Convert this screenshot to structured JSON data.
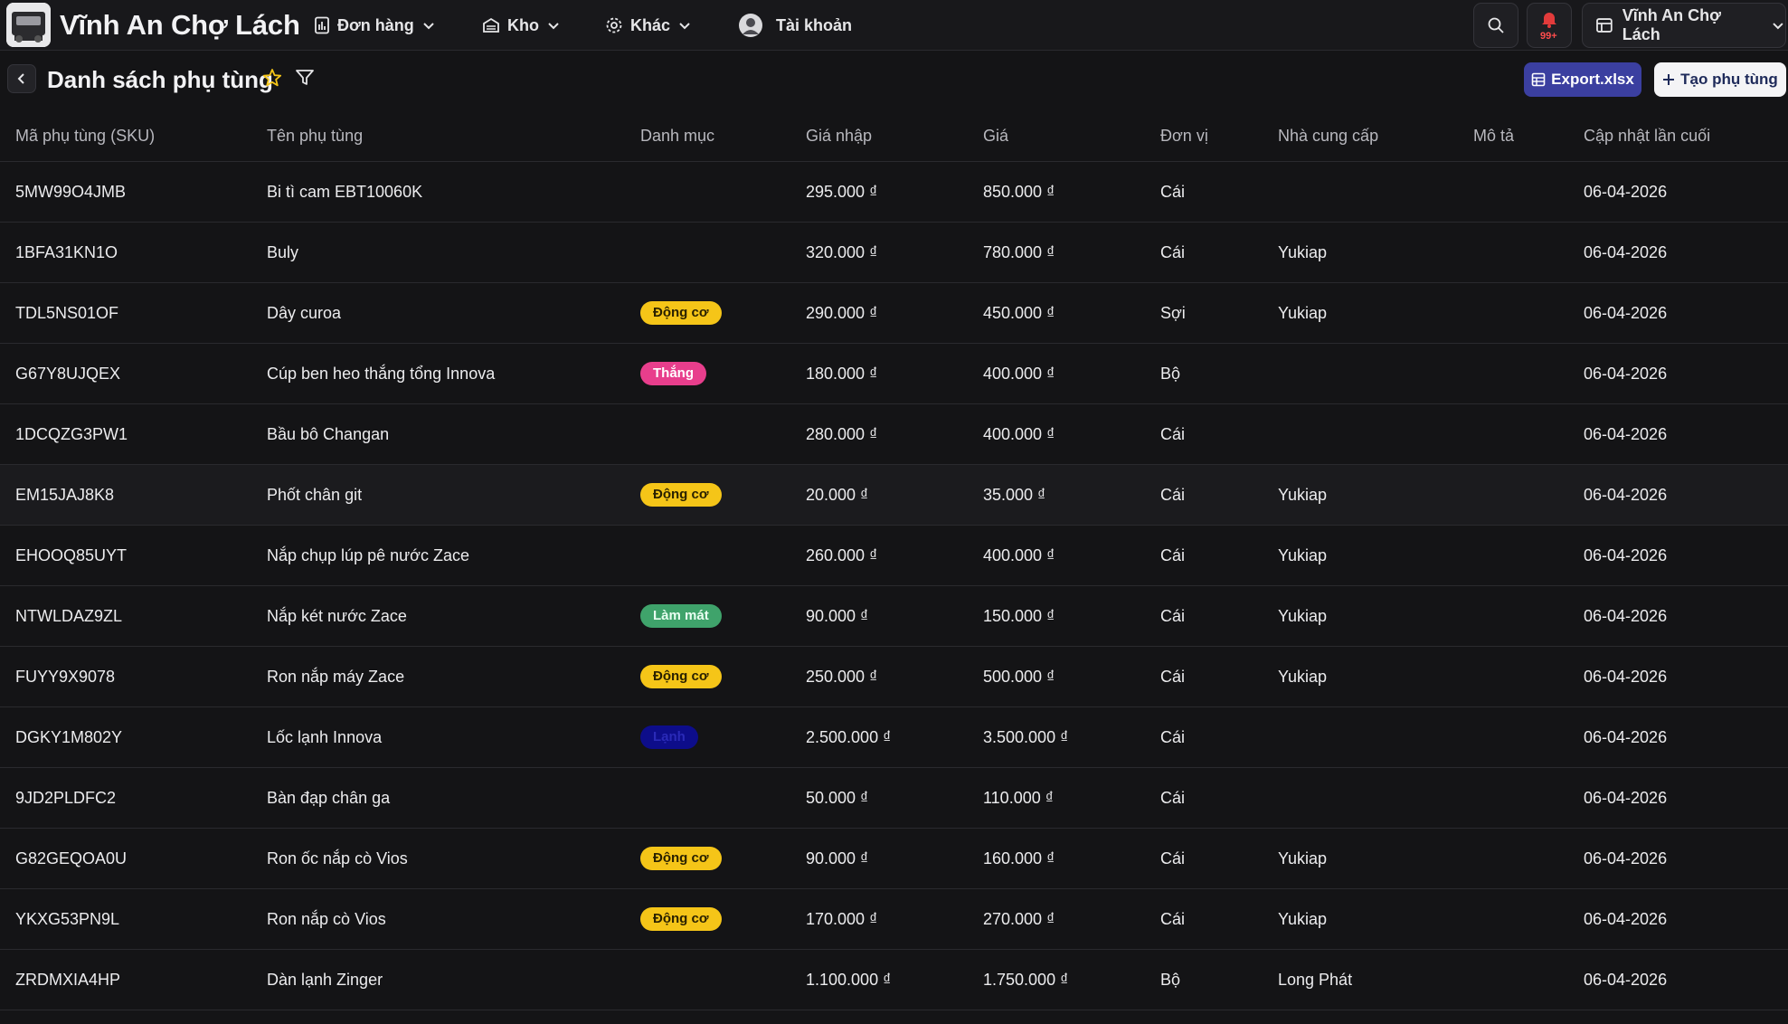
{
  "header": {
    "brand": "Vĩnh An Chợ Lách",
    "nav": [
      {
        "label": "Đơn hàng"
      },
      {
        "label": "Kho"
      },
      {
        "label": "Khác"
      },
      {
        "label": "Tài khoản"
      }
    ],
    "notification_badge": "99+",
    "store_selector": "Vĩnh An Chợ Lách",
    "icons": {
      "orders": "receipt-icon",
      "stock": "warehouse-icon",
      "other": "gear-icon",
      "account": "avatar",
      "search": "search-icon",
      "notifications": "bell-icon",
      "store": "store-icon"
    }
  },
  "page": {
    "title": "Danh sách phụ tùng",
    "export_label": "Export.xlsx",
    "create_label": "Tạo phụ tùng"
  },
  "table": {
    "columns": [
      "Mã phụ tùng (SKU)",
      "Tên phụ tùng",
      "Danh mục",
      "Giá nhập",
      "Giá",
      "Đơn vị",
      "Nhà cung cấp",
      "Mô tả",
      "Cập nhật lần cuối"
    ],
    "rows": [
      {
        "sku": "5MW99O4JMB",
        "name": "Bi tì cam EBT10060K",
        "category": "",
        "cost": "295.000 ₫",
        "price": "850.000 ₫",
        "unit": "Cái",
        "supplier": "",
        "desc": "",
        "updated": "06-04-2026"
      },
      {
        "sku": "1BFA31KN1O",
        "name": "Buly",
        "category": "",
        "cost": "320.000 ₫",
        "price": "780.000 ₫",
        "unit": "Cái",
        "supplier": "Yukiap",
        "desc": "",
        "updated": "06-04-2026"
      },
      {
        "sku": "TDL5NS01OF",
        "name": "Dây curoa",
        "category": "Động cơ",
        "cost": "290.000 ₫",
        "price": "450.000 ₫",
        "unit": "Sợi",
        "supplier": "Yukiap",
        "desc": "",
        "updated": "06-04-2026"
      },
      {
        "sku": "G67Y8UJQEX",
        "name": "Cúp ben heo thắng tổng Innova",
        "category": "Thắng",
        "cost": "180.000 ₫",
        "price": "400.000 ₫",
        "unit": "Bộ",
        "supplier": "",
        "desc": "",
        "updated": "06-04-2026"
      },
      {
        "sku": "1DCQZG3PW1",
        "name": "Bầu bô Changan",
        "category": "",
        "cost": "280.000 ₫",
        "price": "400.000 ₫",
        "unit": "Cái",
        "supplier": "",
        "desc": "",
        "updated": "06-04-2026"
      },
      {
        "sku": "EM15JAJ8K8",
        "name": "Phốt chân git",
        "category": "Động cơ",
        "cost": "20.000 ₫",
        "price": "35.000 ₫",
        "unit": "Cái",
        "supplier": "Yukiap",
        "desc": "",
        "updated": "06-04-2026"
      },
      {
        "sku": "EHOOQ85UYT",
        "name": "Nắp chụp lúp pê nước Zace",
        "category": "",
        "cost": "260.000 ₫",
        "price": "400.000 ₫",
        "unit": "Cái",
        "supplier": "Yukiap",
        "desc": "",
        "updated": "06-04-2026"
      },
      {
        "sku": "NTWLDAZ9ZL",
        "name": "Nắp két nước Zace",
        "category": "Làm mát",
        "cost": "90.000 ₫",
        "price": "150.000 ₫",
        "unit": "Cái",
        "supplier": "Yukiap",
        "desc": "",
        "updated": "06-04-2026"
      },
      {
        "sku": "FUYY9X9078",
        "name": "Ron nắp máy Zace",
        "category": "Động cơ",
        "cost": "250.000 ₫",
        "price": "500.000 ₫",
        "unit": "Cái",
        "supplier": "Yukiap",
        "desc": "",
        "updated": "06-04-2026"
      },
      {
        "sku": "DGKY1M802Y",
        "name": "Lốc lạnh Innova",
        "category": "Lạnh",
        "cost": "2.500.000 ₫",
        "price": "3.500.000 ₫",
        "unit": "Cái",
        "supplier": "",
        "desc": "",
        "updated": "06-04-2026"
      },
      {
        "sku": "9JD2PLDFC2",
        "name": "Bàn đạp chân ga",
        "category": "",
        "cost": "50.000 ₫",
        "price": "110.000 ₫",
        "unit": "Cái",
        "supplier": "",
        "desc": "",
        "updated": "06-04-2026"
      },
      {
        "sku": "G82GEQOA0U",
        "name": "Ron ốc nắp cò Vios",
        "category": "Động cơ",
        "cost": "90.000 ₫",
        "price": "160.000 ₫",
        "unit": "Cái",
        "supplier": "Yukiap",
        "desc": "",
        "updated": "06-04-2026"
      },
      {
        "sku": "YKXG53PN9L",
        "name": "Ron nắp cò Vios",
        "category": "Động cơ",
        "cost": "170.000 ₫",
        "price": "270.000 ₫",
        "unit": "Cái",
        "supplier": "Yukiap",
        "desc": "",
        "updated": "06-04-2026"
      },
      {
        "sku": "ZRDMXIA4HP",
        "name": "Dàn lạnh Zinger",
        "category": "",
        "cost": "1.100.000 ₫",
        "price": "1.750.000 ₫",
        "unit": "Bộ",
        "supplier": "Long Phát",
        "desc": "",
        "updated": "06-04-2026"
      }
    ]
  },
  "category_colors": {
    "Động cơ": {
      "bg": "#f5c518",
      "fg": "#2a2100"
    },
    "Thắng": {
      "bg": "#e83e8c",
      "fg": "#ffffff"
    },
    "Làm mát": {
      "bg": "#3fa36b",
      "fg": "#e9fff2"
    },
    "Lạnh": {
      "bg": "#0d0d8a",
      "fg": "#2a2ab8"
    }
  },
  "colors": {
    "background": "#141416",
    "export_button": "#3b3fa0",
    "star": "#f5c518"
  }
}
